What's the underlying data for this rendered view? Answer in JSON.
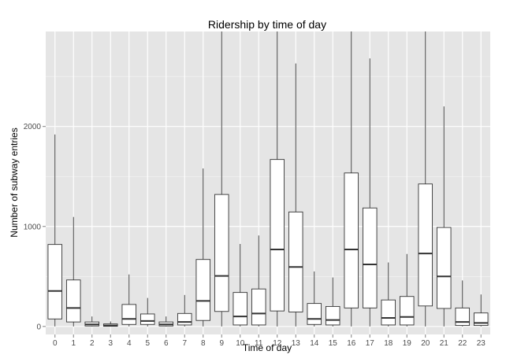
{
  "chart_data": {
    "type": "boxplot",
    "title": "Ridership by time of day",
    "xlabel": "Time of day",
    "ylabel": "Number of subway entries",
    "categories": [
      "0",
      "1",
      "2",
      "3",
      "4",
      "5",
      "6",
      "7",
      "8",
      "9",
      "10",
      "11",
      "12",
      "13",
      "14",
      "15",
      "16",
      "17",
      "18",
      "19",
      "20",
      "21",
      "22",
      "23"
    ],
    "y_ticks": [
      0,
      1000,
      2000
    ],
    "y_tick_labels": [
      "0",
      "1000",
      "2000"
    ],
    "ylim": [
      -80,
      2950
    ],
    "grid": true,
    "background_color": "#e5e5e5",
    "grid_color": "#ffffff",
    "box_fill": "#ffffff",
    "box_stroke": "#333333",
    "boxes": [
      {
        "x": "0",
        "min": 0,
        "q1": 75,
        "median": 355,
        "q3": 820,
        "max": 1920
      },
      {
        "x": "1",
        "min": 0,
        "q1": 45,
        "median": 185,
        "q3": 465,
        "max": 1095
      },
      {
        "x": "2",
        "min": 0,
        "q1": 5,
        "median": 20,
        "q3": 45,
        "max": 100
      },
      {
        "x": "3",
        "min": 0,
        "q1": 2,
        "median": 10,
        "q3": 25,
        "max": 50
      },
      {
        "x": "4",
        "min": 0,
        "q1": 20,
        "median": 75,
        "q3": 220,
        "max": 520
      },
      {
        "x": "5",
        "min": 0,
        "q1": 20,
        "median": 55,
        "q3": 125,
        "max": 285
      },
      {
        "x": "6",
        "min": 0,
        "q1": 5,
        "median": 20,
        "q3": 45,
        "max": 100
      },
      {
        "x": "7",
        "min": 0,
        "q1": 15,
        "median": 45,
        "q3": 130,
        "max": 315
      },
      {
        "x": "8",
        "min": 0,
        "q1": 60,
        "median": 255,
        "q3": 670,
        "max": 1580
      },
      {
        "x": "9",
        "min": 0,
        "q1": 150,
        "median": 505,
        "q3": 1320,
        "max": 2950
      },
      {
        "x": "10",
        "min": 0,
        "q1": 15,
        "median": 100,
        "q3": 340,
        "max": 825
      },
      {
        "x": "11",
        "min": 0,
        "q1": 15,
        "median": 130,
        "q3": 375,
        "max": 910
      },
      {
        "x": "12",
        "min": 0,
        "q1": 155,
        "median": 770,
        "q3": 1670,
        "max": 2950
      },
      {
        "x": "13",
        "min": 0,
        "q1": 145,
        "median": 595,
        "q3": 1145,
        "max": 2630
      },
      {
        "x": "14",
        "min": 0,
        "q1": 20,
        "median": 75,
        "q3": 230,
        "max": 550
      },
      {
        "x": "15",
        "min": 0,
        "q1": 15,
        "median": 65,
        "q3": 200,
        "max": 490
      },
      {
        "x": "16",
        "min": 0,
        "q1": 185,
        "median": 770,
        "q3": 1535,
        "max": 2950
      },
      {
        "x": "17",
        "min": 0,
        "q1": 185,
        "median": 620,
        "q3": 1185,
        "max": 2680
      },
      {
        "x": "18",
        "min": 0,
        "q1": 15,
        "median": 85,
        "q3": 265,
        "max": 640
      },
      {
        "x": "19",
        "min": 0,
        "q1": 15,
        "median": 95,
        "q3": 300,
        "max": 725
      },
      {
        "x": "20",
        "min": 0,
        "q1": 205,
        "median": 730,
        "q3": 1425,
        "max": 2950
      },
      {
        "x": "21",
        "min": 0,
        "q1": 180,
        "median": 500,
        "q3": 990,
        "max": 2200
      },
      {
        "x": "22",
        "min": 0,
        "q1": 10,
        "median": 45,
        "q3": 185,
        "max": 460
      },
      {
        "x": "23",
        "min": 0,
        "q1": 10,
        "median": 35,
        "q3": 135,
        "max": 320
      }
    ]
  }
}
